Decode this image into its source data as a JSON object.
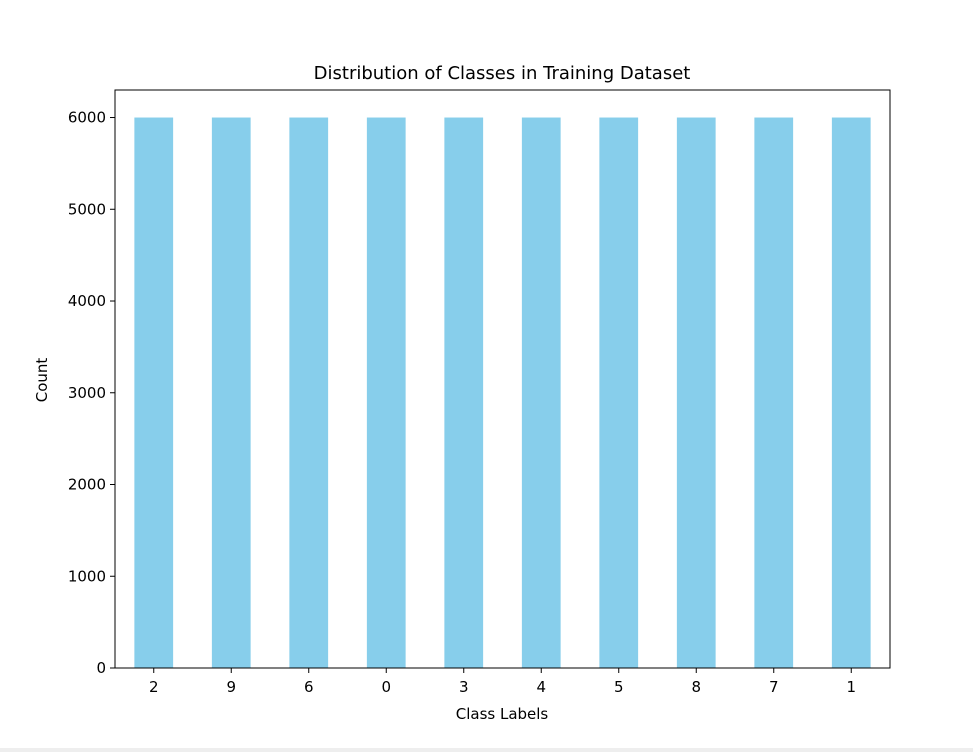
{
  "chart_data": {
    "type": "bar",
    "title": "Distribution of Classes in Training Dataset",
    "xlabel": "Class Labels",
    "ylabel": "Count",
    "categories": [
      "2",
      "9",
      "6",
      "0",
      "3",
      "4",
      "5",
      "8",
      "7",
      "1"
    ],
    "values": [
      6000,
      6000,
      6000,
      6000,
      6000,
      6000,
      6000,
      6000,
      6000,
      6000
    ],
    "ylim": [
      0,
      6300
    ],
    "yticks": [
      0,
      1000,
      2000,
      3000,
      4000,
      5000,
      6000
    ],
    "bar_color": "#87ceeb",
    "grid": false,
    "legend": "none"
  }
}
